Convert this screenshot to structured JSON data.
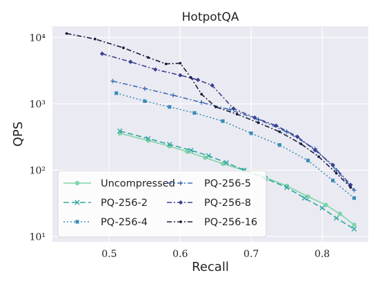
{
  "chart_data": {
    "type": "line",
    "title": "HotpotQA",
    "xlabel": "Recall",
    "ylabel": "QPS",
    "x_scale": "linear",
    "y_scale": "log",
    "xlim": [
      0.42,
      0.865
    ],
    "ylim_log10": [
      0.92,
      4.17
    ],
    "x_ticks": [
      0.5,
      0.6,
      0.7,
      0.8
    ],
    "x_tick_labels": [
      "0.5",
      "0.6",
      "0.7",
      "0.8"
    ],
    "y_ticks": [
      10,
      100,
      1000,
      10000
    ],
    "y_tick_labels": [
      "10¹",
      "10²",
      "10³",
      "10⁴"
    ],
    "grid": true,
    "background": "#eaeaf2",
    "legend_position": "lower-left",
    "series": [
      {
        "name": "Uncompressed",
        "color": "#7fd4a8",
        "dash": "solid",
        "marker": "circle",
        "x": [
          0.515,
          0.555,
          0.585,
          0.61,
          0.635,
          0.66,
          0.69,
          0.72,
          0.75,
          0.78,
          0.805,
          0.825,
          0.845
        ],
        "y": [
          360,
          280,
          230,
          190,
          155,
          125,
          100,
          78,
          58,
          40,
          30,
          22,
          15
        ]
      },
      {
        "name": "PQ-256-2",
        "color": "#2fa6a0",
        "dash": "dashed",
        "marker": "x",
        "x": [
          0.515,
          0.555,
          0.585,
          0.615,
          0.64,
          0.665,
          0.69,
          0.72,
          0.75,
          0.775,
          0.8,
          0.82,
          0.845
        ],
        "y": [
          390,
          300,
          245,
          200,
          165,
          130,
          100,
          75,
          55,
          38,
          27,
          19,
          13
        ]
      },
      {
        "name": "PQ-256-4",
        "color": "#3a8cb8",
        "dash": "dotted",
        "marker": "square",
        "x": [
          0.51,
          0.55,
          0.585,
          0.62,
          0.66,
          0.7,
          0.74,
          0.78,
          0.815,
          0.845
        ],
        "y": [
          1450,
          1100,
          900,
          730,
          550,
          360,
          240,
          140,
          70,
          38
        ]
      },
      {
        "name": "PQ-256-5",
        "color": "#3e6fb0",
        "dash": "dashdot",
        "marker": "plus",
        "x": [
          0.505,
          0.55,
          0.59,
          0.63,
          0.67,
          0.71,
          0.75,
          0.79,
          0.82,
          0.845
        ],
        "y": [
          2200,
          1700,
          1350,
          1050,
          820,
          580,
          380,
          210,
          100,
          50
        ]
      },
      {
        "name": "PQ-256-8",
        "color": "#3a3f8f",
        "dash": "dashdot",
        "marker": "diamond",
        "x": [
          0.49,
          0.53,
          0.565,
          0.6,
          0.625,
          0.645,
          0.675,
          0.705,
          0.735,
          0.765,
          0.79,
          0.815,
          0.84
        ],
        "y": [
          5700,
          4300,
          3300,
          2700,
          2300,
          1900,
          850,
          620,
          470,
          320,
          200,
          120,
          60
        ]
      },
      {
        "name": "PQ-256-16",
        "color": "#1c1a3a",
        "dash": "dashdot",
        "marker": "dot",
        "x": [
          0.44,
          0.48,
          0.52,
          0.555,
          0.58,
          0.6,
          0.615,
          0.63,
          0.65,
          0.68,
          0.71,
          0.74,
          0.77,
          0.795,
          0.82,
          0.84
        ],
        "y": [
          11500,
          9500,
          7000,
          5000,
          4000,
          4100,
          2500,
          1400,
          900,
          700,
          520,
          380,
          250,
          160,
          90,
          55
        ]
      }
    ]
  }
}
